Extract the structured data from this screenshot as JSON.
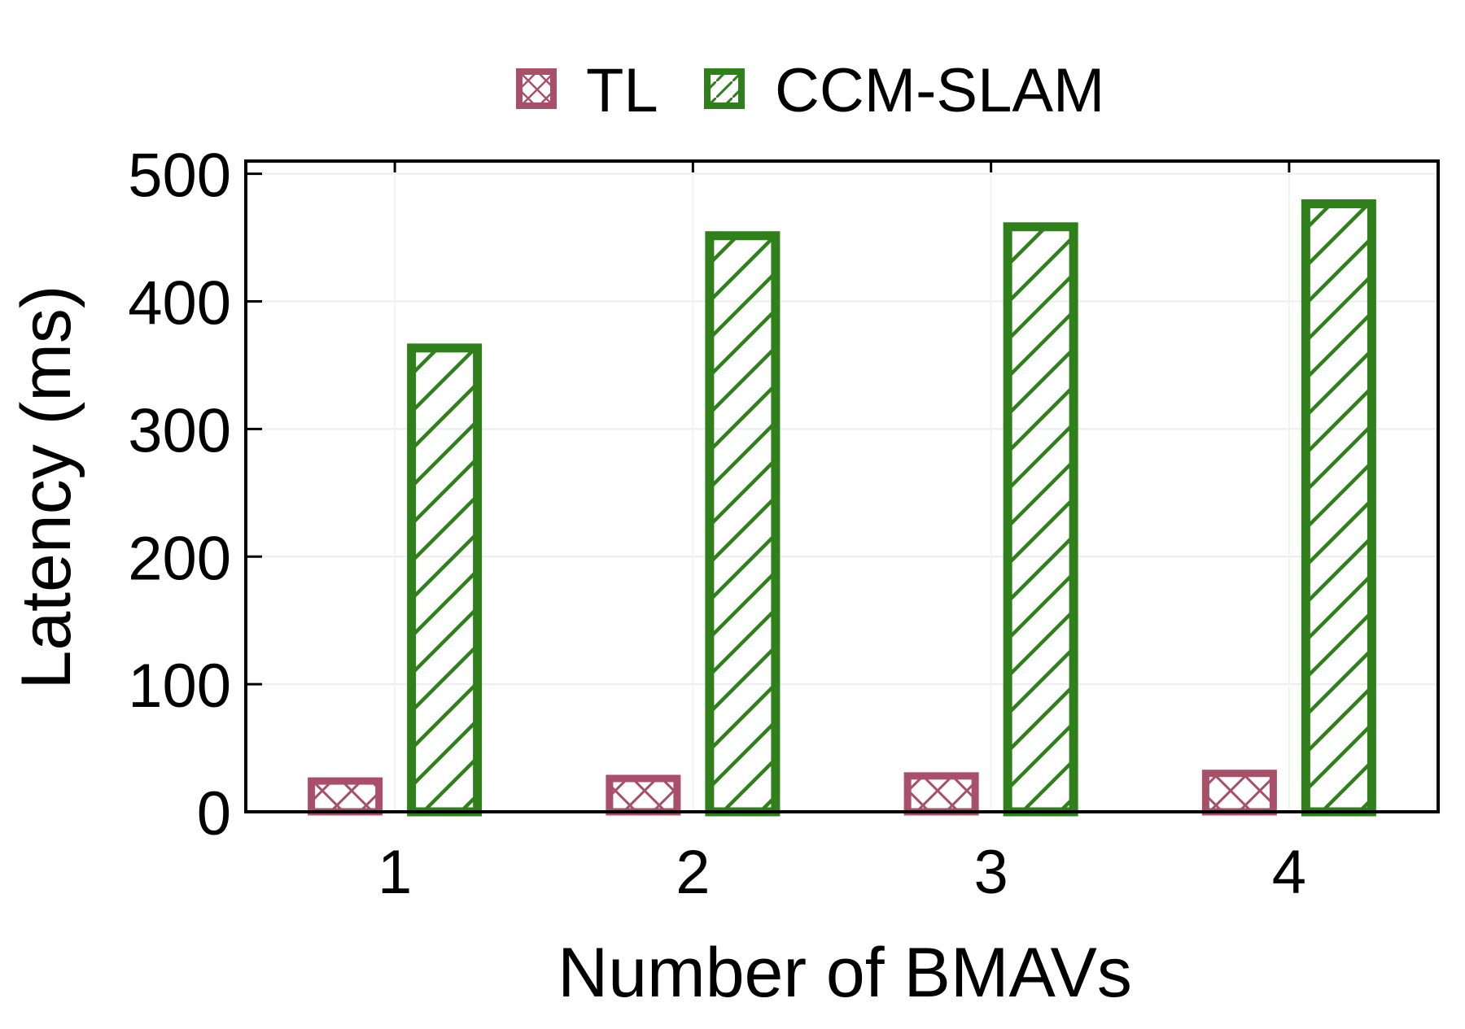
{
  "chart_data": {
    "type": "bar",
    "categories": [
      "1",
      "2",
      "3",
      "4"
    ],
    "series": [
      {
        "name": "TL",
        "values": [
          27,
          29,
          31,
          33
        ],
        "color": "#a8506a",
        "hatch": "crosshatch"
      },
      {
        "name": "CCM-SLAM",
        "values": [
          367,
          455,
          462,
          480
        ],
        "color": "#2f7f1b",
        "hatch": "diagonal"
      }
    ],
    "xlabel": "Number of BMAVs",
    "ylabel": "Latency (ms)",
    "ylim": [
      0,
      510
    ],
    "yticks": [
      0,
      100,
      200,
      300,
      400,
      500
    ],
    "grid": true,
    "legend": "top-center"
  }
}
